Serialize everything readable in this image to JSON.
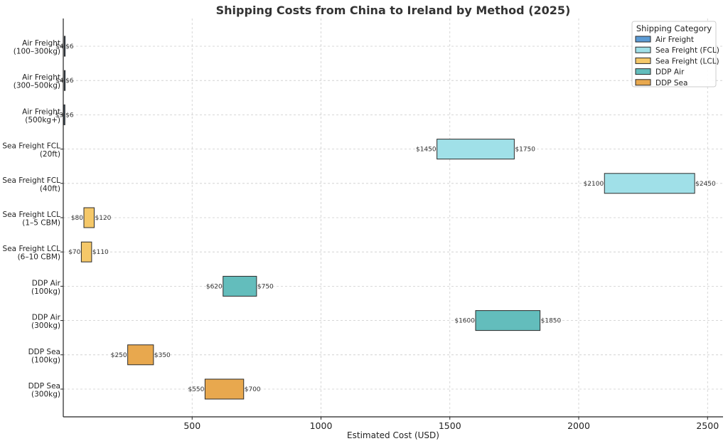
{
  "chart_data": {
    "type": "bar",
    "orientation": "horizontal-range",
    "title": "Shipping Costs from China to Ireland by Method (2025)",
    "xlabel": "Estimated Cost (USD)",
    "ylabel": "",
    "xlim": [
      0,
      2560
    ],
    "xticks": [
      500,
      1000,
      1500,
      2000,
      2500
    ],
    "grid": true,
    "legend_title": "Shipping Category",
    "legend_position": "top-right",
    "categories": [
      {
        "name": "Air Freight",
        "color": "#5b9bd5"
      },
      {
        "name": "Sea Freight (FCL)",
        "color": "#a0e0e8"
      },
      {
        "name": "Sea Freight (LCL)",
        "color": "#f5c869"
      },
      {
        "name": "DDP Air",
        "color": "#63bdbc"
      },
      {
        "name": "DDP Sea",
        "color": "#e8a84e"
      }
    ],
    "rows": [
      {
        "label": [
          "Air Freight",
          "(100–300kg)"
        ],
        "category": "Air Freight",
        "min": 4,
        "max": 6,
        "min_label": "$4",
        "max_label": "$6"
      },
      {
        "label": [
          "Air Freight",
          "(300–500kg)"
        ],
        "category": "Air Freight",
        "min": 4,
        "max": 6,
        "min_label": "$4",
        "max_label": "$6"
      },
      {
        "label": [
          "Air Freight",
          "(500kg+)"
        ],
        "category": "Air Freight",
        "min": 3,
        "max": 6,
        "min_label": "$3",
        "max_label": "$6"
      },
      {
        "label": [
          "Sea Freight FCL",
          "(20ft)"
        ],
        "category": "Sea Freight (FCL)",
        "min": 1450,
        "max": 1750,
        "min_label": "$1450",
        "max_label": "$1750"
      },
      {
        "label": [
          "Sea Freight FCL",
          "(40ft)"
        ],
        "category": "Sea Freight (FCL)",
        "min": 2100,
        "max": 2450,
        "min_label": "$2100",
        "max_label": "$2450"
      },
      {
        "label": [
          "Sea Freight LCL",
          "(1–5 CBM)"
        ],
        "category": "Sea Freight (LCL)",
        "min": 80,
        "max": 120,
        "min_label": "$80",
        "max_label": "$120"
      },
      {
        "label": [
          "Sea Freight LCL",
          "(6–10 CBM)"
        ],
        "category": "Sea Freight (LCL)",
        "min": 70,
        "max": 110,
        "min_label": "$70",
        "max_label": "$110"
      },
      {
        "label": [
          "DDP Air",
          "(100kg)"
        ],
        "category": "DDP Air",
        "min": 620,
        "max": 750,
        "min_label": "$620",
        "max_label": "$750"
      },
      {
        "label": [
          "DDP Air",
          "(300kg)"
        ],
        "category": "DDP Air",
        "min": 1600,
        "max": 1850,
        "min_label": "$1600",
        "max_label": "$1850"
      },
      {
        "label": [
          "DDP Sea",
          "(100kg)"
        ],
        "category": "DDP Sea",
        "min": 250,
        "max": 350,
        "min_label": "$250",
        "max_label": "$350"
      },
      {
        "label": [
          "DDP Sea",
          "(300kg)"
        ],
        "category": "DDP Sea",
        "min": 550,
        "max": 700,
        "min_label": "$550",
        "max_label": "$700"
      }
    ]
  }
}
